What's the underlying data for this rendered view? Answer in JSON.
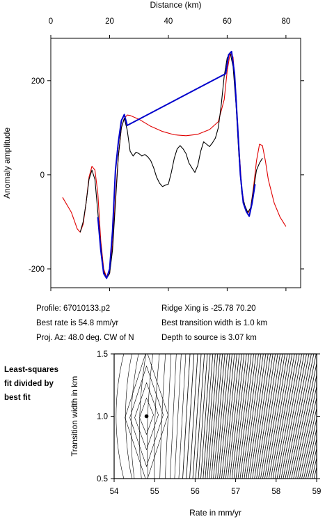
{
  "chart_data": [
    {
      "type": "line",
      "xlabel": "Distance (km)",
      "ylabel": "Anomaly amplitude",
      "xlim": [
        0,
        85
      ],
      "ylim": [
        -240,
        290
      ],
      "xticks": [
        0,
        20,
        40,
        60,
        80
      ],
      "yticks": [
        200,
        0,
        -200
      ],
      "x_axis_position": "top",
      "grid": false,
      "series": [
        {
          "color": "#e00000",
          "points": [
            [
              4,
              -48
            ],
            [
              7,
              -80
            ],
            [
              9,
              -115
            ],
            [
              10,
              -122
            ],
            [
              11,
              -105
            ],
            [
              12,
              -60
            ],
            [
              13,
              -5
            ],
            [
              14,
              18
            ],
            [
              15,
              10
            ],
            [
              16,
              -40
            ],
            [
              17,
              -140
            ],
            [
              18,
              -200
            ],
            [
              19,
              -218
            ],
            [
              20,
              -210
            ],
            [
              21,
              -150
            ],
            [
              22,
              -50
            ],
            [
              23,
              40
            ],
            [
              24,
              100
            ],
            [
              25,
              120
            ],
            [
              26,
              127
            ],
            [
              27,
              126
            ],
            [
              30,
              118
            ],
            [
              34,
              103
            ],
            [
              38,
              92
            ],
            [
              42,
              85
            ],
            [
              46,
              83
            ],
            [
              50,
              86
            ],
            [
              54,
              96
            ],
            [
              57,
              113
            ],
            [
              59,
              160
            ],
            [
              60,
              220
            ],
            [
              61,
              258
            ],
            [
              62,
              250
            ],
            [
              63,
              170
            ],
            [
              64,
              60
            ],
            [
              65,
              -30
            ],
            [
              66,
              -70
            ],
            [
              67,
              -83
            ],
            [
              68,
              -70
            ],
            [
              69,
              -25
            ],
            [
              70,
              30
            ],
            [
              71,
              65
            ],
            [
              72,
              62
            ],
            [
              73,
              30
            ],
            [
              74,
              -10
            ],
            [
              76,
              -60
            ],
            [
              78,
              -90
            ],
            [
              80,
              -110
            ]
          ]
        },
        {
          "color": "#000000",
          "points": [
            [
              10,
              -122
            ],
            [
              11,
              -100
            ],
            [
              12,
              -60
            ],
            [
              13,
              -10
            ],
            [
              14,
              10
            ],
            [
              15,
              -10
            ],
            [
              16,
              -80
            ],
            [
              17,
              -150
            ],
            [
              18,
              -205
            ],
            [
              19,
              -220
            ],
            [
              20,
              -210
            ],
            [
              21,
              -160
            ],
            [
              22,
              -60
            ],
            [
              23,
              40
            ],
            [
              24,
              100
            ],
            [
              25,
              120
            ],
            [
              26,
              95
            ],
            [
              27,
              50
            ],
            [
              28,
              40
            ],
            [
              29,
              48
            ],
            [
              30,
              45
            ],
            [
              31,
              40
            ],
            [
              32,
              43
            ],
            [
              33,
              38
            ],
            [
              34,
              30
            ],
            [
              35,
              15
            ],
            [
              36,
              -5
            ],
            [
              37,
              -18
            ],
            [
              38,
              -25
            ],
            [
              39,
              -22
            ],
            [
              40,
              -20
            ],
            [
              41,
              5
            ],
            [
              42,
              35
            ],
            [
              43,
              55
            ],
            [
              44,
              62
            ],
            [
              45,
              55
            ],
            [
              46,
              45
            ],
            [
              47,
              25
            ],
            [
              48,
              15
            ],
            [
              49,
              5
            ],
            [
              50,
              20
            ],
            [
              51,
              50
            ],
            [
              52,
              70
            ],
            [
              53,
              65
            ],
            [
              54,
              60
            ],
            [
              55,
              68
            ],
            [
              56,
              78
            ],
            [
              57,
              100
            ],
            [
              58,
              150
            ],
            [
              59,
              210
            ],
            [
              60,
              248
            ],
            [
              61,
              260
            ],
            [
              62,
              230
            ],
            [
              63,
              150
            ],
            [
              64,
              40
            ],
            [
              65,
              -40
            ],
            [
              66,
              -65
            ],
            [
              67,
              -80
            ],
            [
              68,
              -70
            ],
            [
              69,
              -30
            ],
            [
              70,
              10
            ],
            [
              71,
              25
            ],
            [
              72,
              35
            ]
          ]
        },
        {
          "color": "#0000cc",
          "points": [
            [
              16,
              -90
            ],
            [
              17,
              -160
            ],
            [
              18,
              -210
            ],
            [
              19,
              -220
            ],
            [
              20,
              -200
            ],
            [
              21,
              -120
            ],
            [
              22,
              10
            ],
            [
              23,
              70
            ],
            [
              24,
              115
            ],
            [
              25,
              128
            ],
            [
              26,
              105
            ],
            [
              59.5,
              215
            ],
            [
              60.5,
              255
            ],
            [
              61.5,
              262
            ],
            [
              62.5,
              215
            ],
            [
              63.5,
              110
            ],
            [
              64.5,
              0
            ],
            [
              65.5,
              -60
            ],
            [
              66.5,
              -78
            ],
            [
              67.5,
              -88
            ],
            [
              68.5,
              -60
            ],
            [
              69.5,
              -20
            ]
          ]
        }
      ]
    },
    {
      "type": "contour",
      "xlabel": "Rate in mm/yr",
      "ylabel": "Transition width in km",
      "xlim": [
        54,
        59
      ],
      "ylim": [
        0.5,
        1.5
      ],
      "xticks": [
        "54",
        "55",
        "56",
        "57",
        "58",
        "59"
      ],
      "yticks": [
        "1.5",
        "1.0",
        "0.5"
      ],
      "best_fit_point": [
        54.8,
        1.0
      ]
    }
  ],
  "info": {
    "profile": "Profile: 67010133.p2",
    "best_rate": "Best rate is 54.8 mm/yr",
    "proj_az": "Proj. Az: 48.0 deg. CW of N",
    "ridge_xing": "Ridge Xing is -25.78 70.20",
    "transition": "Best transition width is 1.0 km",
    "depth": "Depth to source is   3.07 km"
  },
  "side_label": [
    "Least-squares",
    "fit divided by",
    "best fit"
  ]
}
